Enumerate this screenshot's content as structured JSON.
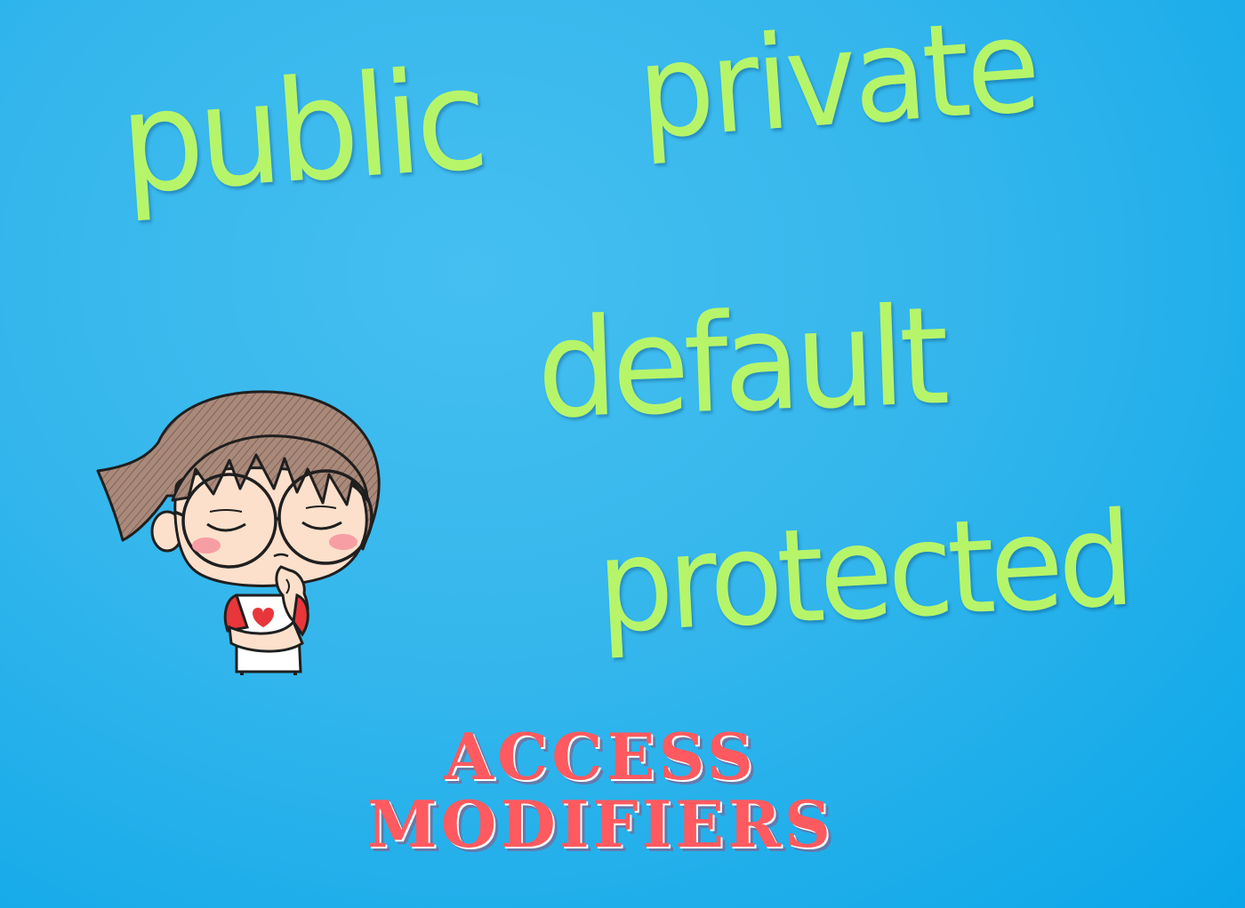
{
  "words": {
    "public": "public",
    "private": "private",
    "default": "default",
    "protected": "protected"
  },
  "title": {
    "line1": "ACCESS",
    "line2": "MODIFIERS"
  },
  "colors": {
    "background": "#34b6ec",
    "word": "#b6f56a",
    "title": "#ff5a5f",
    "hair": "#a9897a",
    "skin": "#fce0cc",
    "blush": "#f79ea4",
    "shirt_red": "#e8363a"
  },
  "illustration": {
    "name": "thinking-girl-illustration"
  }
}
